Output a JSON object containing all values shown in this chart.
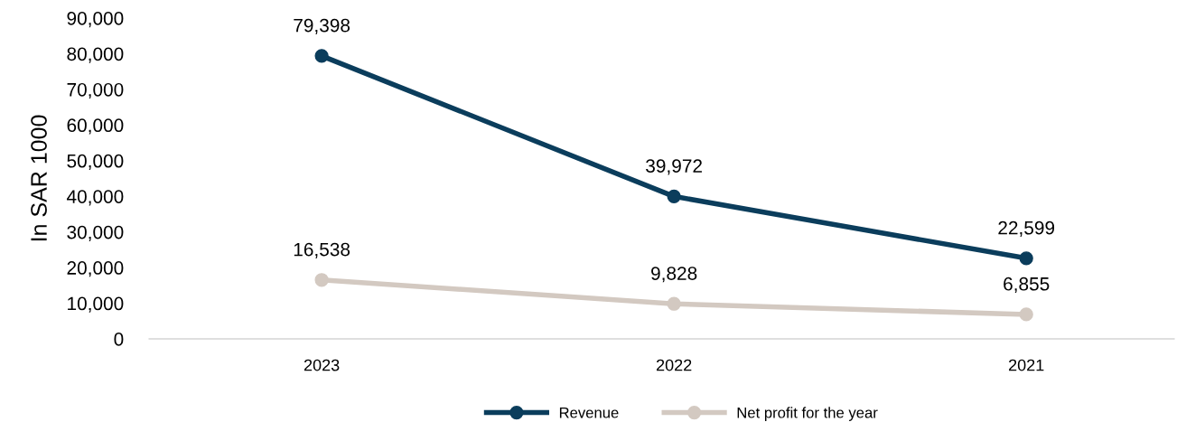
{
  "chart_data": {
    "type": "line",
    "ylabel": "In SAR 1000",
    "categories": [
      "2023",
      "2022",
      "2021"
    ],
    "series": [
      {
        "name": "Revenue",
        "color": "#0b3d5c",
        "values": [
          79398,
          39972,
          22599
        ],
        "value_labels": [
          "79,398",
          "39,972",
          "22,599"
        ]
      },
      {
        "name": "Net profit for the year",
        "color": "#d3c9c1",
        "values": [
          16538,
          9828,
          6855
        ],
        "value_labels": [
          "16,538",
          "9,828",
          "6,855"
        ]
      }
    ],
    "ylim": [
      0,
      90000
    ],
    "yticks": [
      0,
      {
        "value": 10000,
        "label": "10,000"
      },
      {
        "value": 20000,
        "label": "20,000"
      },
      {
        "value": 30000,
        "label": "30,000"
      },
      {
        "value": 40000,
        "label": "40,000"
      },
      {
        "value": 50000,
        "label": "50,000"
      },
      {
        "value": 60000,
        "label": "60,000"
      },
      {
        "value": 70000,
        "label": "70,000"
      },
      {
        "value": 80000,
        "label": "80,000"
      },
      {
        "value": 90000,
        "label": "90,000"
      }
    ],
    "marker": "circle",
    "line_style": "solid",
    "grid": false,
    "legend": "bottom"
  }
}
